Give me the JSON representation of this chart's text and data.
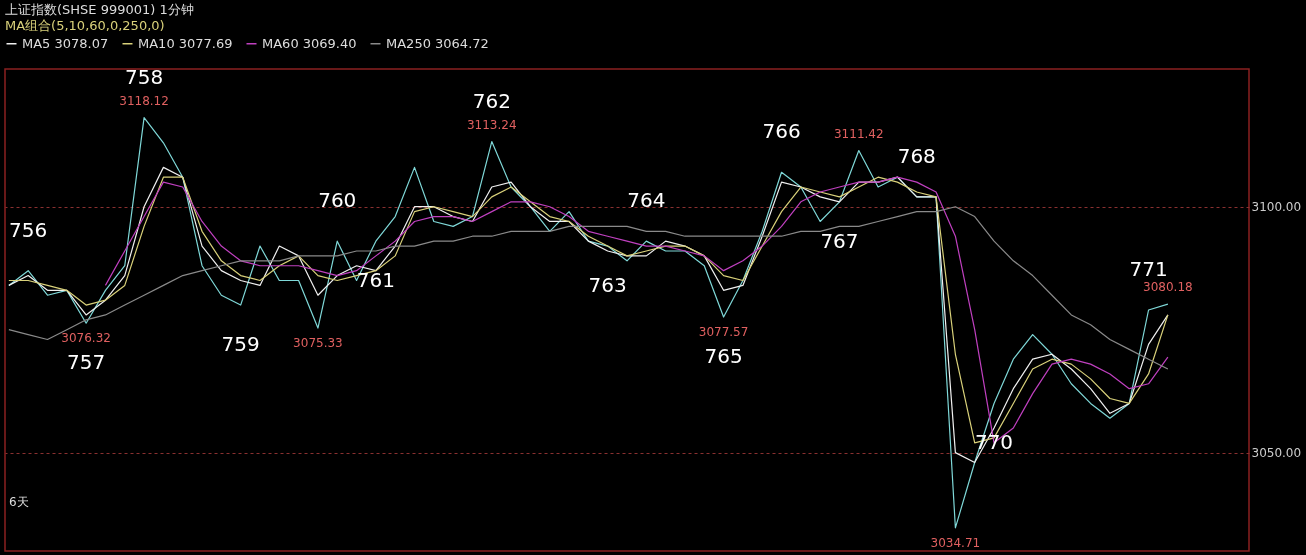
{
  "chart_data": {
    "type": "line",
    "title": "上证指数(SHSE 999001)  1分钟",
    "subtitle": "MA组合(5,10,60,0,250,0)",
    "categories": [
      null,
      null,
      null,
      null,
      null,
      null,
      null,
      null,
      null,
      null,
      null,
      null,
      null,
      null,
      null,
      null,
      null,
      null,
      null,
      null,
      null,
      null,
      null,
      null,
      null,
      null,
      null,
      null,
      null,
      null,
      null,
      null,
      null,
      null,
      null,
      null,
      null,
      null,
      null,
      null,
      null,
      null,
      null,
      null,
      null,
      null,
      null,
      null,
      null,
      null,
      null,
      null,
      null,
      null,
      null,
      null,
      null,
      null,
      null,
      null,
      null,
      null,
      null,
      null,
      null
    ],
    "ylim": [
      3030,
      3128
    ],
    "yticks": [
      {
        "value": 3050,
        "label": "3050.00"
      },
      {
        "value": 3100,
        "label": "3100.00"
      }
    ],
    "tick_labels": "y",
    "grid": "y",
    "line_style": "solid",
    "marker": "none",
    "legend": "top left",
    "series": [
      {
        "color": "#7fd8d8",
        "values": [
          3084,
          3087,
          3082,
          3083,
          3076.32,
          3083,
          3088,
          3118.12,
          3113,
          3106,
          3088,
          3082,
          3080,
          3092,
          3085,
          3085,
          3075.33,
          3093,
          3085,
          3093,
          3098,
          3108,
          3097,
          3096,
          3098,
          3113.24,
          3104,
          3100,
          3095,
          3099,
          3093,
          3092,
          3089,
          3093,
          3091,
          3091,
          3088,
          3077.57,
          3085,
          3095,
          3107,
          3104,
          3097,
          3101,
          3111.42,
          3104,
          3106,
          3102,
          3102,
          3034.71,
          3048,
          3060,
          3069,
          3074,
          3070,
          3064,
          3060,
          3057,
          3060,
          3079,
          3080.18,
          null,
          null,
          null,
          null
        ],
        "value_labels": [
          null,
          null,
          null,
          null,
          "3076.32",
          null,
          null,
          "3118.12",
          null,
          null,
          null,
          null,
          null,
          null,
          null,
          null,
          "3075.33",
          null,
          null,
          null,
          null,
          null,
          null,
          null,
          null,
          "3113.24",
          null,
          null,
          null,
          null,
          null,
          null,
          null,
          null,
          null,
          null,
          null,
          "3077.57",
          null,
          null,
          null,
          null,
          null,
          null,
          "3111.42",
          null,
          null,
          null,
          null,
          "3034.71",
          null,
          null,
          null,
          null,
          null,
          null,
          null,
          null,
          null,
          null,
          "3080.18",
          null,
          null,
          null,
          null
        ]
      },
      {
        "name": "MA5 3078.07",
        "color": "#f0f0f0",
        "values": [
          3084,
          3086,
          3083,
          3083,
          3078,
          3081,
          3086,
          3100,
          3108,
          3106,
          3092,
          3087,
          3085,
          3084,
          3092,
          3090,
          3082,
          3086,
          3088,
          3087,
          3092,
          3100,
          3100,
          3098,
          3097,
          3104,
          3105,
          3100,
          3097,
          3097,
          3093,
          3091,
          3090,
          3090,
          3093,
          3092,
          3090,
          3083,
          3084,
          3094,
          3105,
          3104,
          3102,
          3101,
          3105,
          3105,
          3106,
          3102,
          3102,
          3050,
          3048,
          3055,
          3063,
          3069,
          3070,
          3067,
          3063,
          3058,
          3060,
          3072,
          3078,
          null,
          null,
          null,
          null
        ]
      },
      {
        "name": "MA10 3077.69",
        "color": "#d9d17a",
        "values": [
          3085,
          3085,
          3084,
          3083,
          3080,
          3081,
          3084,
          3096,
          3106,
          3106,
          3095,
          3089,
          3086,
          3085,
          3088,
          3090,
          3086,
          3085,
          3086,
          3087,
          3090,
          3099,
          3100,
          3099,
          3098,
          3102,
          3104,
          3101,
          3098,
          3097,
          3094,
          3092,
          3090,
          3091,
          3092,
          3092,
          3090,
          3086,
          3085,
          3092,
          3099,
          3104,
          3103,
          3102,
          3104,
          3106,
          3105,
          3103,
          3102,
          3070,
          3052,
          3053,
          3060,
          3067,
          3069,
          3068,
          3065,
          3061,
          3060,
          3066,
          3078,
          null,
          null,
          null,
          null
        ]
      },
      {
        "name": "MA60 3069.40",
        "color": "#c040c0",
        "values": [
          null,
          null,
          null,
          null,
          null,
          3084,
          3091,
          3098,
          3105,
          3104,
          3097,
          3092,
          3089,
          3088,
          3088,
          3088,
          3087,
          3086,
          3087,
          3090,
          3093,
          3097,
          3098,
          3098,
          3097,
          3099,
          3101,
          3101,
          3100,
          3098,
          3095,
          3094,
          3093,
          3092,
          3092,
          3091,
          3090,
          3087,
          3089,
          3092,
          3096,
          3101,
          3103,
          3104,
          3105,
          3105,
          3106,
          3105,
          3103,
          3094,
          3075,
          3052,
          3055,
          3062,
          3068,
          3069,
          3068,
          3066,
          3063,
          3064,
          3069.4,
          null,
          null,
          null,
          null
        ]
      },
      {
        "name": "MA250 3064.72",
        "color": "#8a8a8a",
        "values": [
          3075,
          3074,
          3073,
          3075,
          3077,
          3078,
          3080,
          3082,
          3084,
          3086,
          3087,
          3088,
          3089,
          3089,
          3089,
          3090,
          3090,
          3090,
          3091,
          3091,
          3092,
          3092,
          3093,
          3093,
          3094,
          3094,
          3095,
          3095,
          3095,
          3096,
          3096,
          3096,
          3096,
          3095,
          3095,
          3094,
          3094,
          3094,
          3094,
          3094,
          3094,
          3095,
          3095,
          3096,
          3096,
          3097,
          3098,
          3099,
          3099,
          3100,
          3098,
          3093,
          3089,
          3086,
          3082,
          3078,
          3076,
          3073,
          3071,
          3069,
          3067,
          null,
          null,
          null,
          null
        ]
      }
    ],
    "annotations": [
      "756",
      "757",
      "758",
      "759",
      "760",
      "761",
      "762",
      "763",
      "764",
      "765",
      "766",
      "767",
      "768",
      "770",
      "771",
      "6天"
    ]
  }
}
